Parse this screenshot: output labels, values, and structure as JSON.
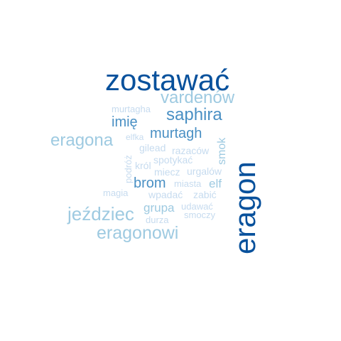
{
  "palette": {
    "dark": "#08519c",
    "mid": "#4a90c4",
    "light": "#9ecae1",
    "pale": "#c6dbef"
  },
  "words": [
    {
      "text": "zostawać",
      "weight": 1.0,
      "tone": "dark"
    },
    {
      "text": "eragon",
      "weight": 1.0,
      "tone": "dark"
    },
    {
      "text": "vardenów",
      "weight": 0.45,
      "tone": "light"
    },
    {
      "text": "saphira",
      "weight": 0.45,
      "tone": "mid"
    },
    {
      "text": "murtagha",
      "weight": 0.2,
      "tone": "pale"
    },
    {
      "text": "imię",
      "weight": 0.35,
      "tone": "mid"
    },
    {
      "text": "murtagh",
      "weight": 0.4,
      "tone": "mid"
    },
    {
      "text": "eragona",
      "weight": 0.45,
      "tone": "light"
    },
    {
      "text": "elfka",
      "weight": 0.2,
      "tone": "pale"
    },
    {
      "text": "smok",
      "weight": 0.3,
      "tone": "light"
    },
    {
      "text": "gilead",
      "weight": 0.25,
      "tone": "pale"
    },
    {
      "text": "razaców",
      "weight": 0.25,
      "tone": "pale"
    },
    {
      "text": "spotykać",
      "weight": 0.25,
      "tone": "pale"
    },
    {
      "text": "podróż",
      "weight": 0.2,
      "tone": "pale"
    },
    {
      "text": "król",
      "weight": 0.25,
      "tone": "pale"
    },
    {
      "text": "miecz",
      "weight": 0.25,
      "tone": "pale"
    },
    {
      "text": "urgalów",
      "weight": 0.25,
      "tone": "pale"
    },
    {
      "text": "brom",
      "weight": 0.4,
      "tone": "mid"
    },
    {
      "text": "miasta",
      "weight": 0.2,
      "tone": "pale"
    },
    {
      "text": "elf",
      "weight": 0.3,
      "tone": "light"
    },
    {
      "text": "magia",
      "weight": 0.2,
      "tone": "pale"
    },
    {
      "text": "wpadać",
      "weight": 0.2,
      "tone": "pale"
    },
    {
      "text": "zabić",
      "weight": 0.2,
      "tone": "pale"
    },
    {
      "text": "jeździec",
      "weight": 0.55,
      "tone": "light"
    },
    {
      "text": "grupa",
      "weight": 0.3,
      "tone": "light"
    },
    {
      "text": "udawać",
      "weight": 0.2,
      "tone": "pale"
    },
    {
      "text": "smoczy",
      "weight": 0.2,
      "tone": "pale"
    },
    {
      "text": "durza",
      "weight": 0.2,
      "tone": "pale"
    },
    {
      "text": "eragonowi",
      "weight": 0.5,
      "tone": "light"
    }
  ]
}
